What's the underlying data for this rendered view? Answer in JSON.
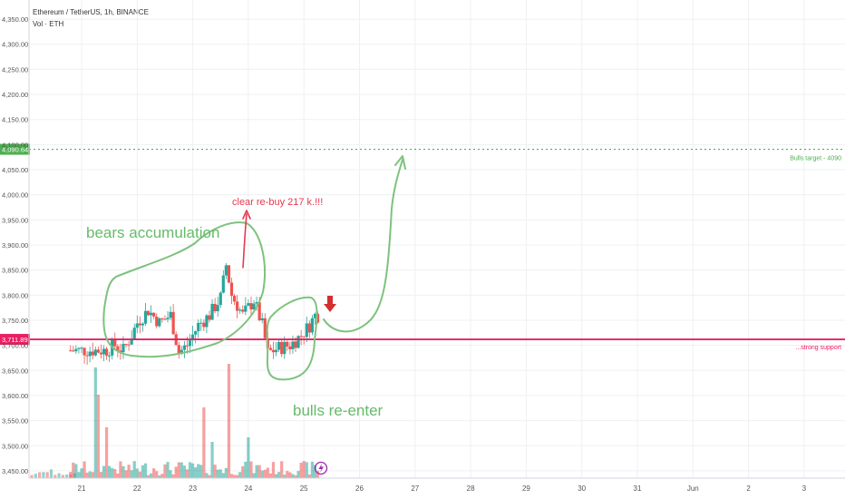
{
  "header": {
    "title": "Ethereum / TetherUS, 1h, BINANCE",
    "volume_label": "Vol · ETH"
  },
  "price_axis": {
    "labels": [
      "4,350.00",
      "4,300.00",
      "4,250.00",
      "4,200.00",
      "4,150.00",
      "4,100.00",
      "4,050.00",
      "4,000.00",
      "3,950.00",
      "3,900.00",
      "3,850.00",
      "3,800.00",
      "3,750.00",
      "3,700.00",
      "3,650.00",
      "3,600.00",
      "3,550.00",
      "3,500.00",
      "3,450.00"
    ],
    "values": [
      4350,
      4300,
      4250,
      4200,
      4150,
      4100,
      4050,
      4000,
      3950,
      3900,
      3850,
      3800,
      3750,
      3700,
      3650,
      3600,
      3550,
      3500,
      3450
    ]
  },
  "time_axis": {
    "labels": [
      "21",
      "22",
      "23",
      "24",
      "25",
      "26",
      "27",
      "28",
      "29",
      "30",
      "31",
      "Jun",
      "2",
      "3"
    ],
    "day_index": [
      0,
      1,
      2,
      3,
      4,
      5,
      6,
      7,
      8,
      9,
      10,
      11,
      12,
      13
    ]
  },
  "levels": {
    "target": {
      "price": 4090.64,
      "badge": "4,090.64",
      "text": "Bulls target - 4090",
      "color": "#4caf50"
    },
    "support": {
      "price": 3711.89,
      "badge": "3,711.89",
      "text": "...strong support",
      "color": "#e91e63"
    }
  },
  "annotations": {
    "bears": "bears accumulation",
    "bulls": "bulls re-enter",
    "rebuy": "clear re-buy 217 k.!!!"
  },
  "colors": {
    "up": "#26a69a",
    "down": "#ef5350",
    "annotation_green": "#66bb6a",
    "annotation_red": "#e91e63",
    "grid": "#eef0f3"
  },
  "chart_data": {
    "type": "candlestick",
    "symbol": "ETH/USDT",
    "interval": "1h",
    "ylim": [
      3430,
      4370
    ],
    "xlim_days": [
      -0.95,
      14.0
    ],
    "grid": true,
    "price_path": [
      {
        "day": 0.45,
        "price": 3690
      },
      {
        "day": 0.6,
        "price": 3700
      },
      {
        "day": 0.75,
        "price": 3690
      },
      {
        "day": 0.9,
        "price": 3720
      },
      {
        "day": 1.0,
        "price": 3745
      },
      {
        "day": 1.2,
        "price": 3770
      },
      {
        "day": 1.4,
        "price": 3745
      },
      {
        "day": 1.6,
        "price": 3760
      },
      {
        "day": 1.75,
        "price": 3685
      },
      {
        "day": 1.9,
        "price": 3700
      },
      {
        "day": 2.1,
        "price": 3740
      },
      {
        "day": 2.3,
        "price": 3760
      },
      {
        "day": 2.5,
        "price": 3795
      },
      {
        "day": 2.6,
        "price": 3860
      },
      {
        "day": 2.7,
        "price": 3800
      },
      {
        "day": 2.9,
        "price": 3760
      },
      {
        "day": 3.1,
        "price": 3790
      },
      {
        "day": 3.25,
        "price": 3740
      },
      {
        "day": 3.35,
        "price": 3685
      },
      {
        "day": 3.55,
        "price": 3695
      },
      {
        "day": 3.75,
        "price": 3700
      },
      {
        "day": 3.95,
        "price": 3720
      },
      {
        "day": 4.1,
        "price": 3740
      },
      {
        "day": 4.2,
        "price": 3760
      }
    ]
  }
}
